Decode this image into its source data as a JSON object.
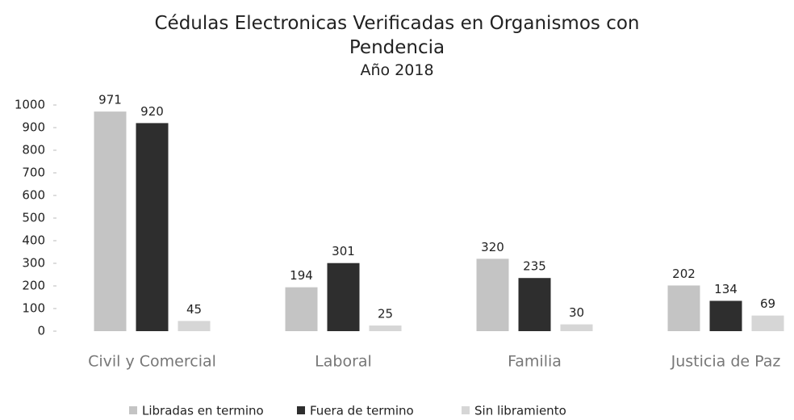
{
  "chart_data": {
    "type": "bar",
    "title": "Cédulas Electronicas Verificadas en Organismos con Pendencia",
    "subtitle": "Año 2018",
    "categories": [
      "Civil y Comercial",
      "Laboral",
      "Familia",
      "Justicia de Paz"
    ],
    "series": [
      {
        "name": "Libradas en termino",
        "color": "#c4c4c4",
        "values": [
          971,
          194,
          320,
          202
        ]
      },
      {
        "name": "Fuera de termino",
        "color": "#2e2e2e",
        "values": [
          920,
          301,
          235,
          134
        ]
      },
      {
        "name": "Sin libramiento",
        "color": "#d6d6d6",
        "values": [
          45,
          25,
          30,
          69
        ]
      }
    ],
    "ylim": [
      0,
      1000
    ],
    "yticks": [
      0,
      100,
      200,
      300,
      400,
      500,
      600,
      700,
      800,
      900,
      1000
    ],
    "grid": false,
    "legend": "bottom"
  }
}
